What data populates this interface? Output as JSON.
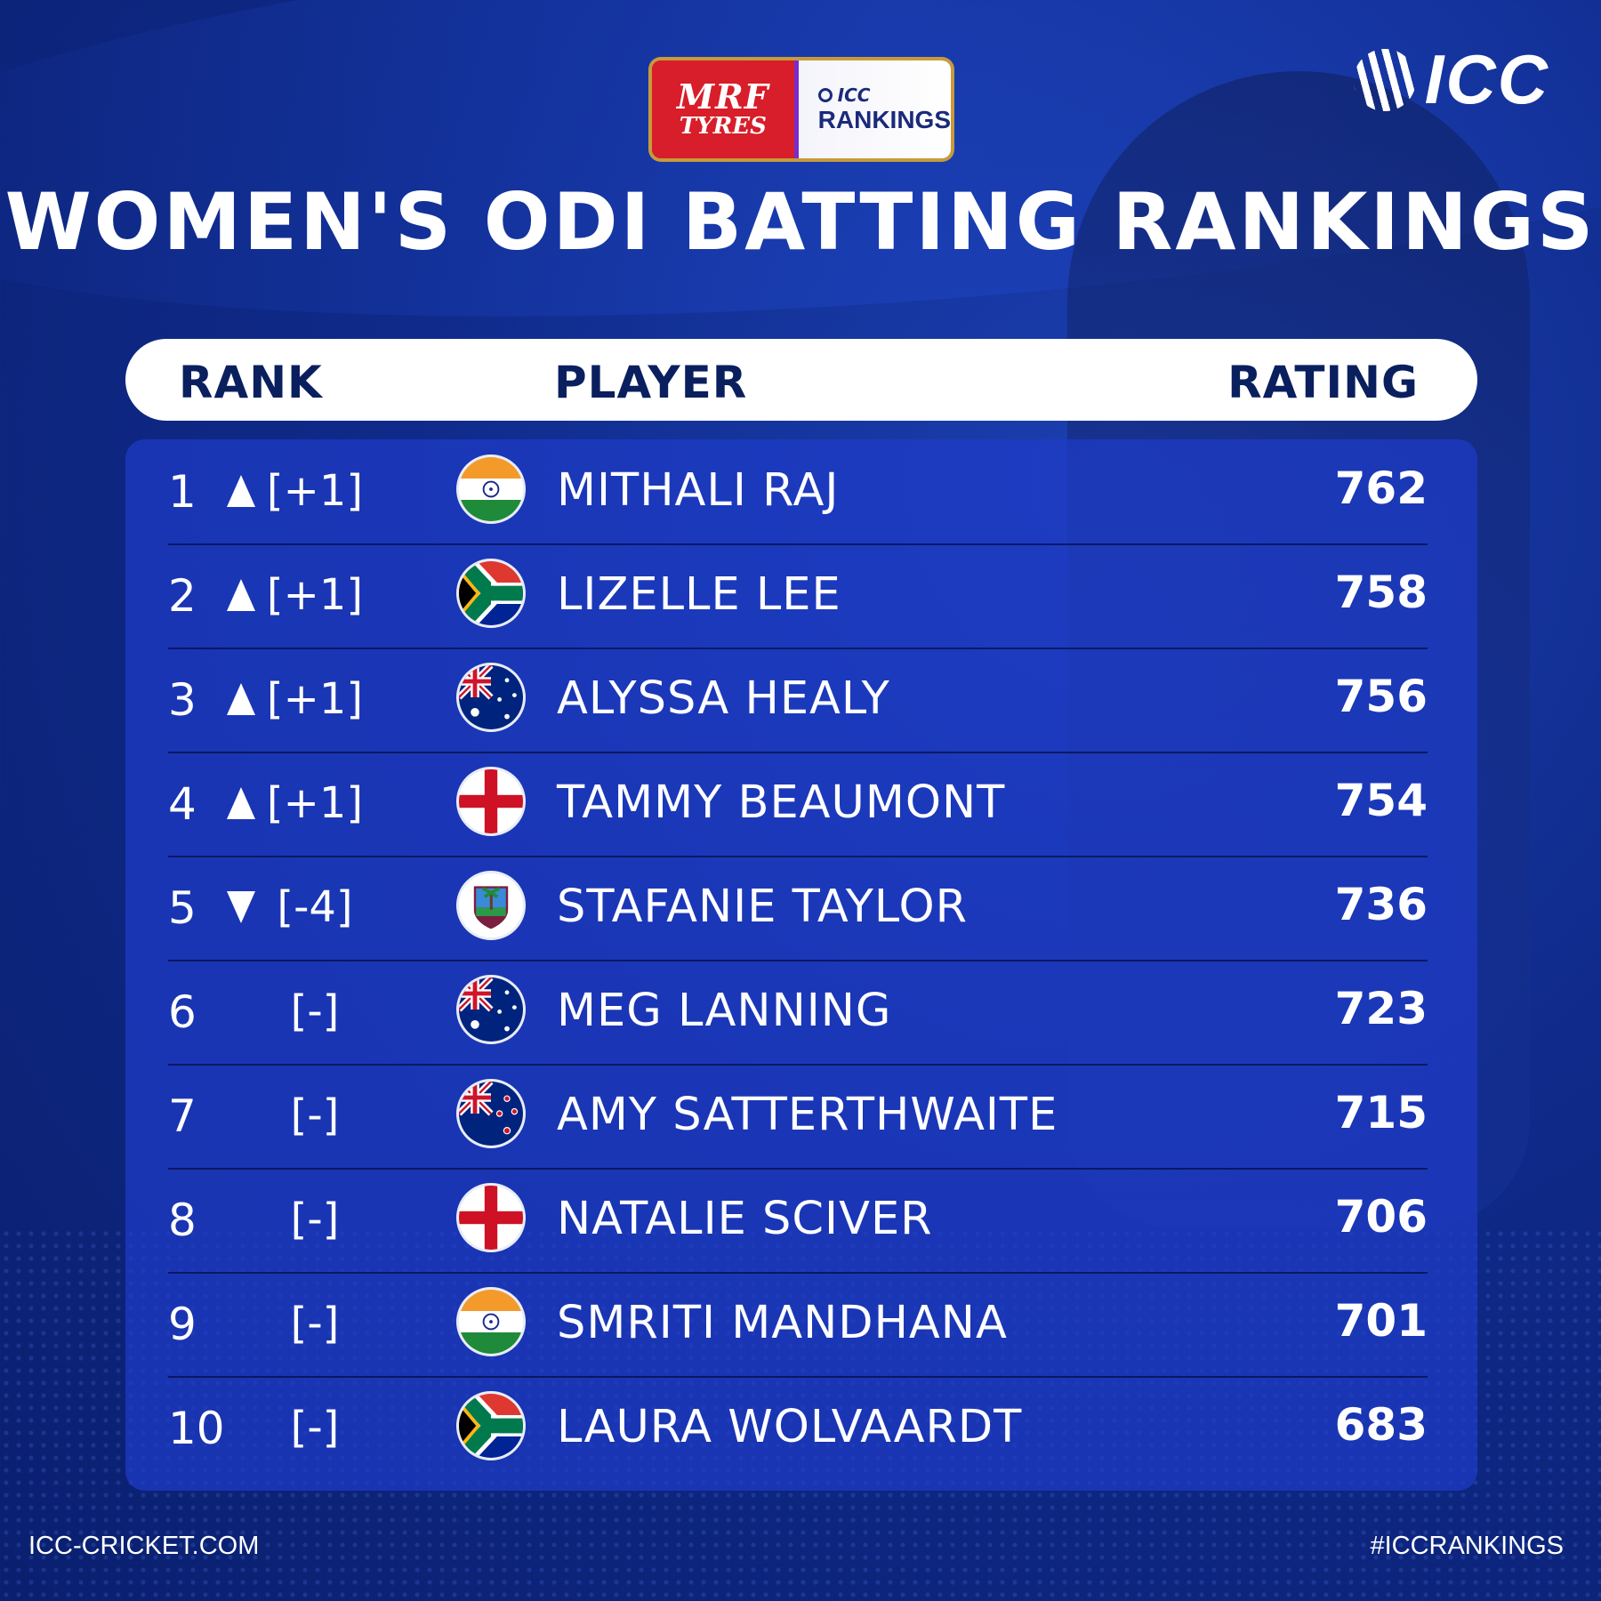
{
  "sponsor": {
    "mrf_line1": "MRF",
    "mrf_line2": "TYRES",
    "rank_line1": "ICC",
    "rank_line2": "RANKINGS"
  },
  "brand": {
    "logo_text": "ICC"
  },
  "title": "WOMEN'S ODI BATTING RANKINGS",
  "table": {
    "headers": {
      "rank": "RANK",
      "player": "PLAYER",
      "rating": "RATING"
    },
    "rows": [
      {
        "rank": "1",
        "trend": "up",
        "change": "[+1]",
        "flag": "india-flag-icon",
        "player": "MITHALI RAJ",
        "rating": "762"
      },
      {
        "rank": "2",
        "trend": "up",
        "change": "[+1]",
        "flag": "south-africa-flag-icon",
        "player": "LIZELLE LEE",
        "rating": "758"
      },
      {
        "rank": "3",
        "trend": "up",
        "change": "[+1]",
        "flag": "australia-flag-icon",
        "player": "ALYSSA HEALY",
        "rating": "756"
      },
      {
        "rank": "4",
        "trend": "up",
        "change": "[+1]",
        "flag": "england-flag-icon",
        "player": "TAMMY BEAUMONT",
        "rating": "754"
      },
      {
        "rank": "5",
        "trend": "down",
        "change": "[-4]",
        "flag": "west-indies-flag-icon",
        "player": "STAFANIE TAYLOR",
        "rating": "736"
      },
      {
        "rank": "6",
        "trend": "none",
        "change": "[-]",
        "flag": "australia-flag-icon",
        "player": "MEG LANNING",
        "rating": "723"
      },
      {
        "rank": "7",
        "trend": "none",
        "change": "[-]",
        "flag": "new-zealand-flag-icon",
        "player": "AMY SATTERTHWAITE",
        "rating": "715"
      },
      {
        "rank": "8",
        "trend": "none",
        "change": "[-]",
        "flag": "england-flag-icon",
        "player": "NATALIE SCIVER",
        "rating": "706"
      },
      {
        "rank": "9",
        "trend": "none",
        "change": "[-]",
        "flag": "india-flag-icon",
        "player": "SMRITI MANDHANA",
        "rating": "701"
      },
      {
        "rank": "10",
        "trend": "none",
        "change": "[-]",
        "flag": "south-africa-flag-icon",
        "player": "LAURA WOLVAARDT",
        "rating": "683"
      }
    ]
  },
  "footer": {
    "left": "ICC-CRICKET.COM",
    "right": "#ICCRANKINGS"
  },
  "colors": {
    "background": "#0f2a8a",
    "panel": "#1e3cc8",
    "header_text": "#0a1f5e",
    "mrf_red": "#d71e2a"
  }
}
